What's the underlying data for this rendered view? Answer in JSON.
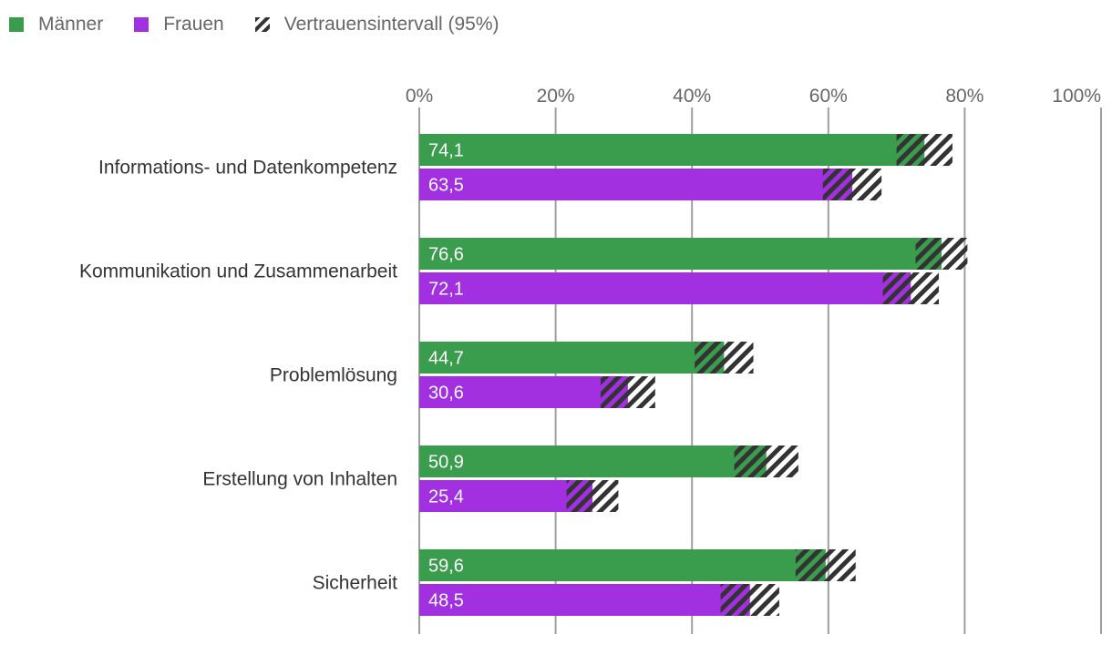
{
  "chart_data": {
    "type": "bar",
    "orientation": "horizontal",
    "categories": [
      "Informations- und Datenkompetenz",
      "Kommunikation und Zusammenarbeit",
      "Problemlösung",
      "Erstellung von Inhalten",
      "Sicherheit"
    ],
    "series": [
      {
        "name": "Männer",
        "color": "#3a9c4d",
        "values": [
          74.1,
          76.6,
          44.7,
          50.9,
          59.6
        ],
        "value_labels": [
          "74,1",
          "76,6",
          "44,7",
          "50,9",
          "59,6"
        ],
        "ci_low": [
          70.0,
          72.8,
          40.4,
          46.2,
          55.2
        ],
        "ci_high": [
          78.2,
          80.4,
          49.0,
          55.6,
          64.0
        ]
      },
      {
        "name": "Frauen",
        "color": "#a22fe0",
        "values": [
          63.5,
          72.1,
          30.6,
          25.4,
          48.5
        ],
        "value_labels": [
          "63,5",
          "72,1",
          "30,6",
          "25,4",
          "48,5"
        ],
        "ci_low": [
          59.2,
          68.0,
          26.6,
          21.6,
          44.2
        ],
        "ci_high": [
          67.8,
          76.2,
          34.6,
          29.2,
          52.8
        ]
      }
    ],
    "ci_legend": "Vertrauensintervall (95%)",
    "xlim": [
      0,
      100
    ],
    "x_ticks": [
      0,
      20,
      40,
      60,
      80,
      100
    ],
    "x_tick_labels": [
      "0%",
      "20%",
      "40%",
      "60%",
      "80%",
      "100%"
    ],
    "grid": true,
    "legend_position": "top-left",
    "title": "",
    "xlabel": "",
    "ylabel": ""
  }
}
